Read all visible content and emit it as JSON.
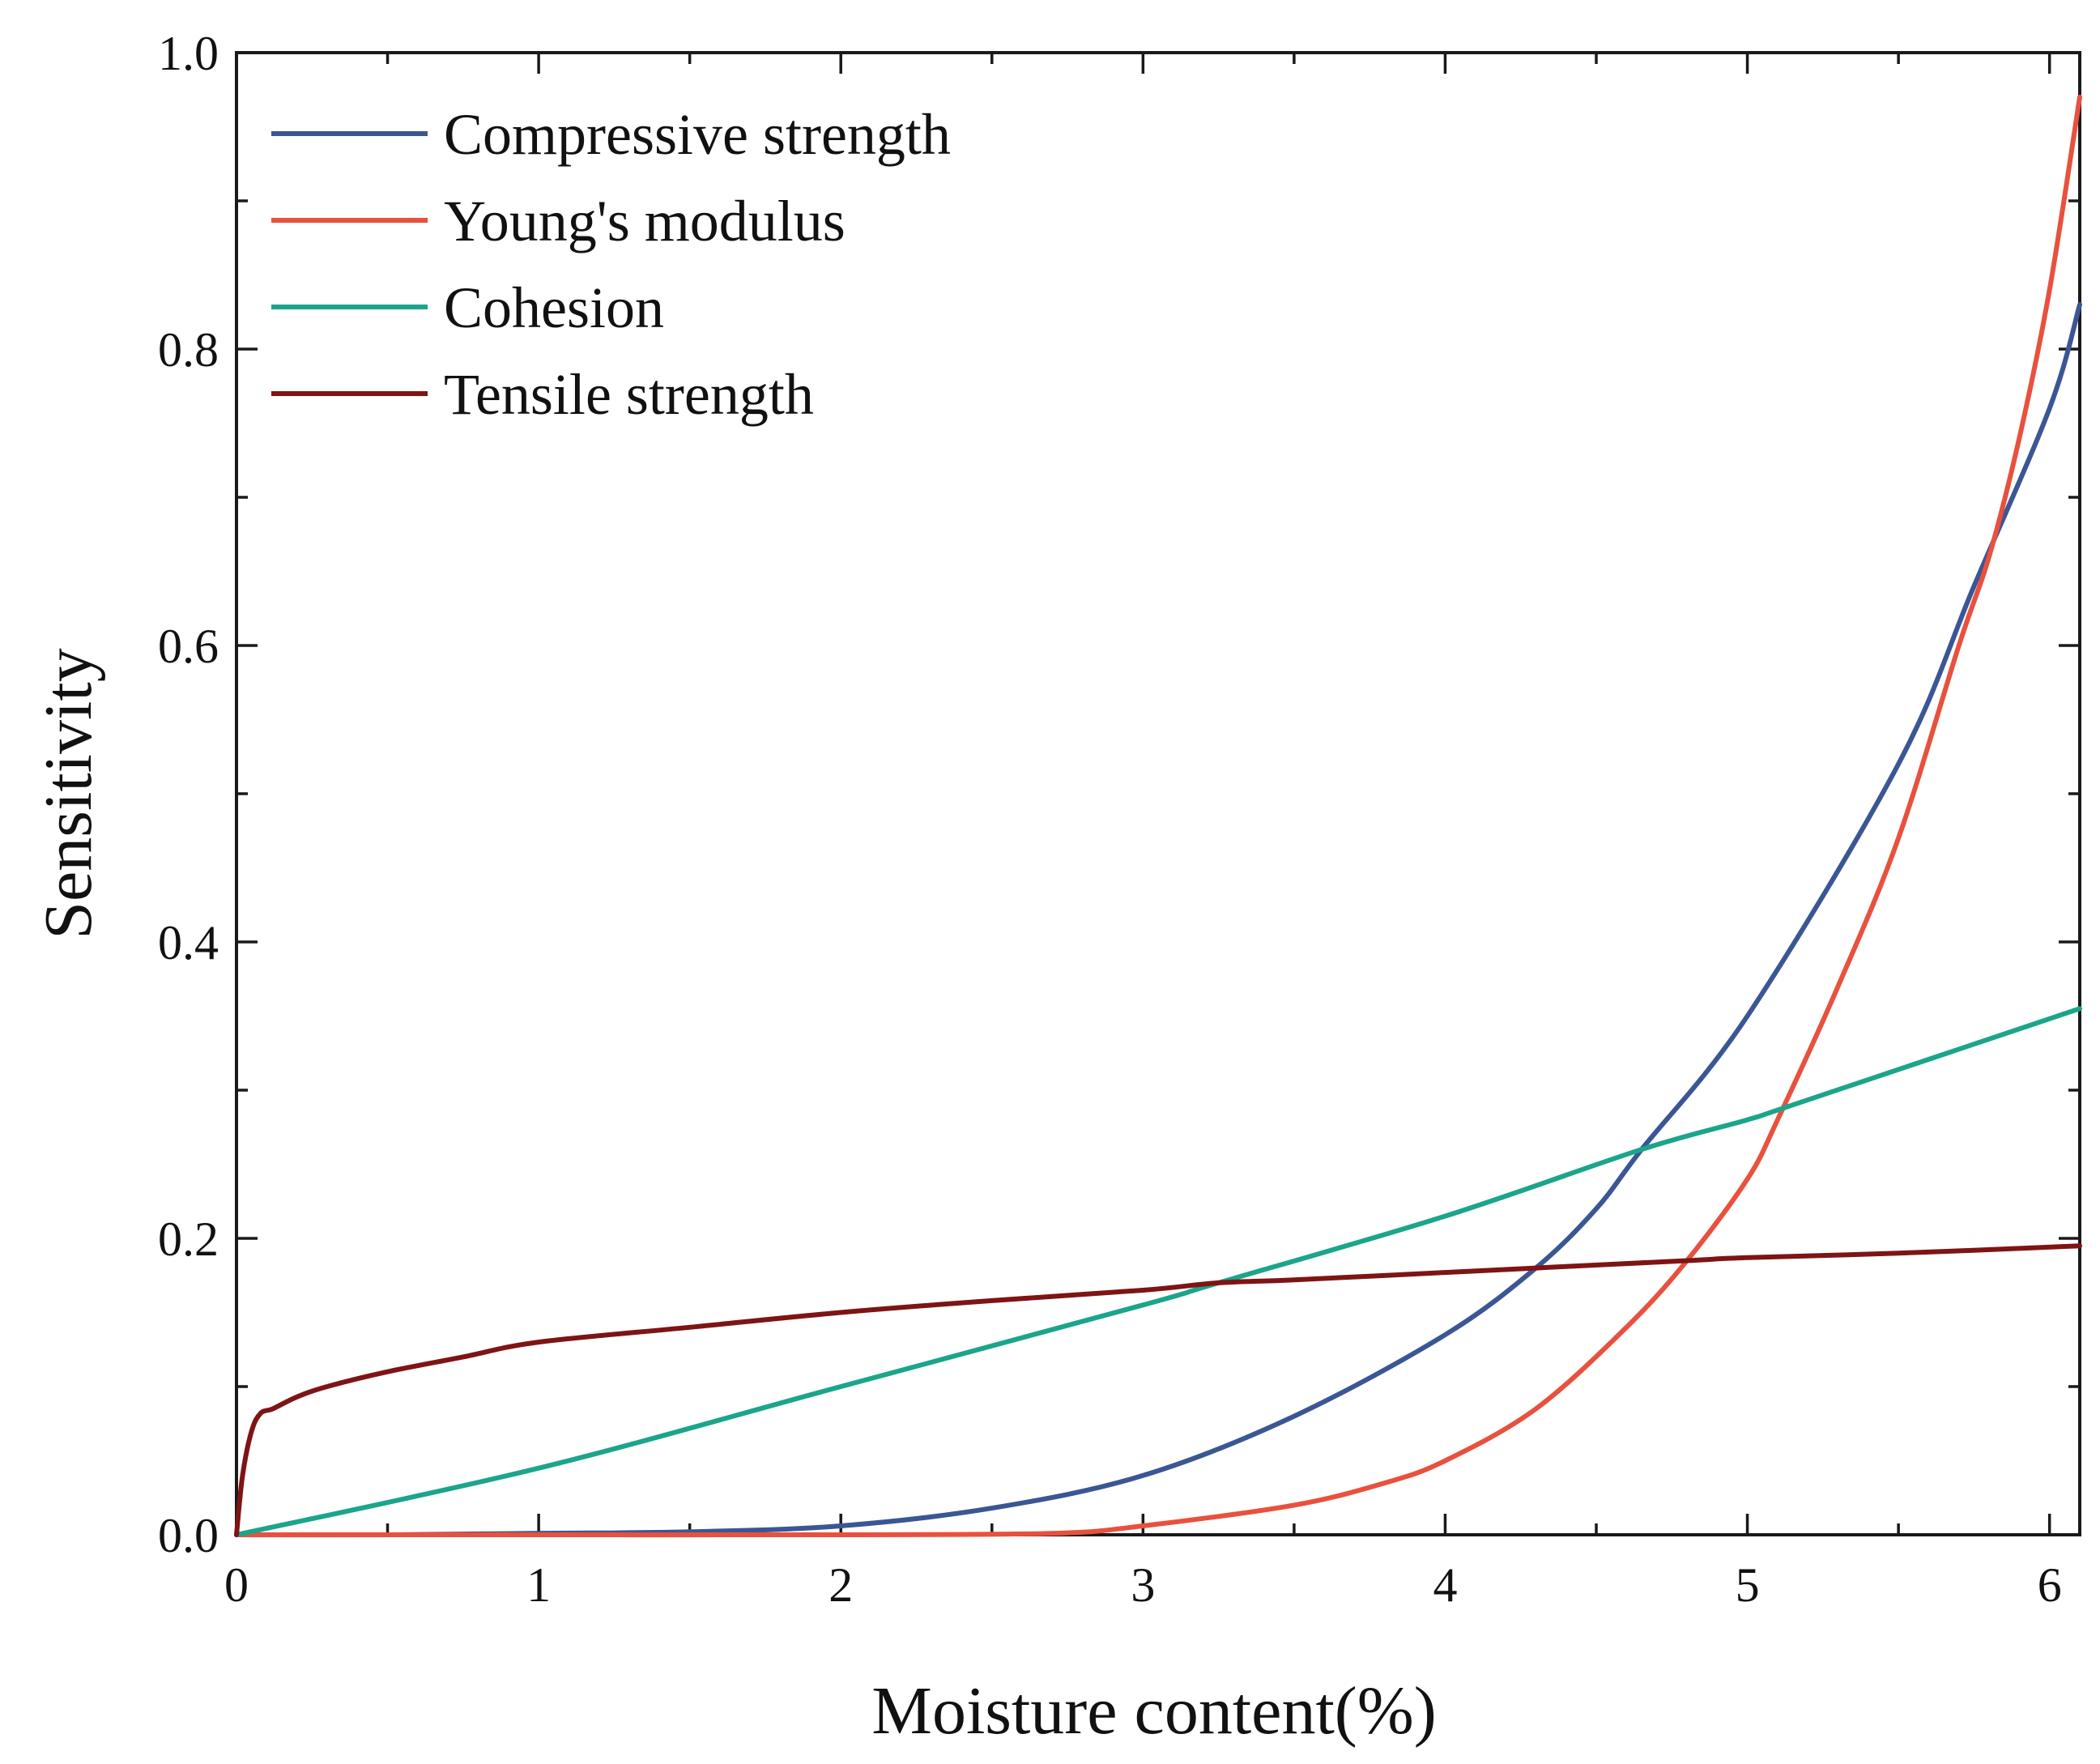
{
  "chart_data": {
    "type": "line",
    "title": "",
    "xlabel": "Moisture content(%)",
    "ylabel": "Sensitivity",
    "xlim": [
      0,
      6.1
    ],
    "ylim": [
      0,
      1.0
    ],
    "x_major_ticks": [
      0,
      1,
      2,
      3,
      4,
      5,
      6
    ],
    "x_tick_labels": [
      "0",
      "1",
      "2",
      "3",
      "4",
      "5",
      "6"
    ],
    "y_major_ticks": [
      0.0,
      0.2,
      0.4,
      0.6,
      0.8,
      1.0
    ],
    "y_tick_labels": [
      "0.0",
      "0.2",
      "0.4",
      "0.6",
      "0.8",
      "1.0"
    ],
    "grid": false,
    "legend_position": "top-left",
    "series": [
      {
        "name": "Compressive strength",
        "color": "#3b5694",
        "points": [
          [
            0,
            0
          ],
          [
            0.5,
            0
          ],
          [
            1.0,
            0.001
          ],
          [
            1.5,
            0.002
          ],
          [
            2.0,
            0.006
          ],
          [
            2.5,
            0.018
          ],
          [
            3.0,
            0.04
          ],
          [
            3.5,
            0.08
          ],
          [
            4.0,
            0.135
          ],
          [
            4.3,
            0.18
          ],
          [
            4.5,
            0.22
          ],
          [
            4.65,
            0.26
          ],
          [
            5.0,
            0.35
          ],
          [
            5.5,
            0.52
          ],
          [
            5.75,
            0.64
          ],
          [
            6.0,
            0.76
          ],
          [
            6.1,
            0.83
          ]
        ]
      },
      {
        "name": "Young's modulus",
        "color": "#e8513e",
        "points": [
          [
            0,
            0
          ],
          [
            1.0,
            0
          ],
          [
            2.0,
            0
          ],
          [
            2.7,
            0.001
          ],
          [
            3.0,
            0.006
          ],
          [
            3.5,
            0.02
          ],
          [
            3.8,
            0.035
          ],
          [
            4.0,
            0.05
          ],
          [
            4.3,
            0.085
          ],
          [
            4.6,
            0.14
          ],
          [
            4.8,
            0.185
          ],
          [
            5.0,
            0.24
          ],
          [
            5.1,
            0.28
          ],
          [
            5.3,
            0.37
          ],
          [
            5.5,
            0.47
          ],
          [
            5.7,
            0.6
          ],
          [
            5.8,
            0.66
          ],
          [
            5.9,
            0.74
          ],
          [
            6.0,
            0.84
          ],
          [
            6.1,
            0.97
          ]
        ]
      },
      {
        "name": "Cohesion",
        "color": "#1ba58a",
        "points": [
          [
            0,
            0
          ],
          [
            1.0,
            0.045
          ],
          [
            2.0,
            0.1
          ],
          [
            3.0,
            0.155
          ],
          [
            3.25,
            0.17
          ],
          [
            4.0,
            0.215
          ],
          [
            4.65,
            0.26
          ],
          [
            5.0,
            0.28
          ],
          [
            5.15,
            0.29
          ],
          [
            6.1,
            0.355
          ]
        ]
      },
      {
        "name": "Tensile strength",
        "color": "#7e1414",
        "points": [
          [
            0,
            0
          ],
          [
            0.02,
            0.04
          ],
          [
            0.05,
            0.07
          ],
          [
            0.08,
            0.082
          ],
          [
            0.12,
            0.085
          ],
          [
            0.2,
            0.093
          ],
          [
            0.3,
            0.1
          ],
          [
            0.5,
            0.11
          ],
          [
            0.75,
            0.12
          ],
          [
            1.0,
            0.13
          ],
          [
            1.5,
            0.14
          ],
          [
            2.0,
            0.15
          ],
          [
            2.5,
            0.158
          ],
          [
            3.0,
            0.165
          ],
          [
            3.25,
            0.17
          ],
          [
            3.5,
            0.172
          ],
          [
            4.0,
            0.177
          ],
          [
            4.3,
            0.18
          ],
          [
            4.8,
            0.185
          ],
          [
            5.0,
            0.187
          ],
          [
            5.5,
            0.19
          ],
          [
            6.1,
            0.195
          ]
        ]
      }
    ]
  }
}
